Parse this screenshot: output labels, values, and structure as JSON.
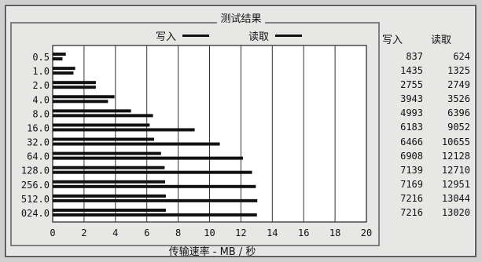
{
  "window": {
    "title": "测试结果",
    "legend_write": "写入",
    "legend_read": "读取",
    "col_write": "写入",
    "col_read": "读取",
    "xlabel": "传输速率 - MB / 秒"
  },
  "chart_data": {
    "type": "bar",
    "orientation": "horizontal",
    "title": "测试结果",
    "xlabel": "传输速率 - MB / 秒",
    "xlim": [
      0,
      20
    ],
    "xticks": [
      "0",
      "2",
      "4",
      "6",
      "8",
      "10",
      "12",
      "14",
      "16",
      "18",
      "20"
    ],
    "categories": [
      "0.5",
      "1.0",
      "2.0",
      "4.0",
      "8.0",
      "16.0",
      "32.0",
      "64.0",
      "128.0",
      "256.0",
      "512.0",
      "024.0"
    ],
    "series": [
      {
        "name": "写入",
        "values": [
          0.837,
          1.435,
          2.755,
          3.943,
          4.993,
          6.183,
          6.466,
          6.908,
          7.139,
          7.169,
          7.216,
          7.216
        ]
      },
      {
        "name": "读取",
        "values": [
          0.624,
          1.325,
          2.749,
          3.526,
          6.396,
          9.052,
          10.655,
          12.128,
          12.71,
          12.951,
          13.044,
          13.02
        ]
      }
    ],
    "grid": true,
    "legend": "top"
  },
  "table": {
    "rows": [
      {
        "write": "837",
        "read": "624"
      },
      {
        "write": "1435",
        "read": "1325"
      },
      {
        "write": "2755",
        "read": "2749"
      },
      {
        "write": "3943",
        "read": "3526"
      },
      {
        "write": "4993",
        "read": "6396"
      },
      {
        "write": "6183",
        "read": "9052"
      },
      {
        "write": "6466",
        "read": "10655"
      },
      {
        "write": "6908",
        "read": "12128"
      },
      {
        "write": "7139",
        "read": "12710"
      },
      {
        "write": "7169",
        "read": "12951"
      },
      {
        "write": "7216",
        "read": "13044"
      },
      {
        "write": "7216",
        "read": "13020"
      }
    ]
  }
}
